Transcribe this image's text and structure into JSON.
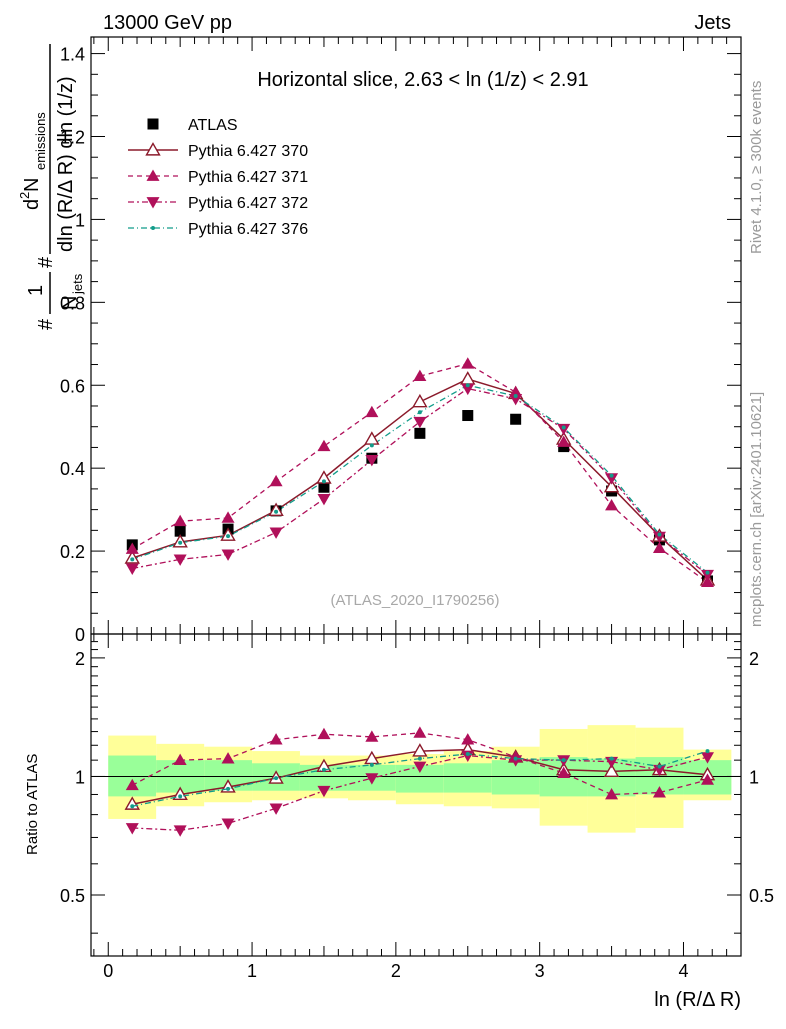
{
  "header": {
    "left": "13000 GeV pp",
    "right": "Jets"
  },
  "side": {
    "rivet": "Rivet 4.1.0, ≥ 300k events",
    "mcplots": "mcplots.cern.ch [arXiv:2401.10621]"
  },
  "colors": {
    "data": "#000000",
    "p370": "#8b1a2b",
    "p371": "#b0105a",
    "p372": "#b0105a",
    "p376": "#129c8a",
    "band_inner": "#99ff99",
    "band_outer": "#ffff99"
  },
  "chart_data": {
    "type": "scatter",
    "title": "Horizontal slice, 2.63 < ln (1/z) < 2.91",
    "watermark": "(ATLAS_2020_I1790256)",
    "xlabel": "ln (R/Δ R)",
    "ylabel_main": "1/N_jets d²N_emissions / dln(R/ΔR) dln(1/z)",
    "ylabel_parts": {
      "frac1_num": "1",
      "frac1_den": "N",
      "frac1_den_sub": "jets",
      "frac2_num": "d",
      "frac2_num_sup": "2",
      "frac2_num_tail": " N",
      "frac2_num_sub": "emissions",
      "frac2_den": "dln (R/Δ R) dln (1/z)",
      "hash": "#"
    },
    "ylabel_ratio": "Ratio to ATLAS",
    "xlim": [
      -0.12,
      4.4
    ],
    "ylim_main": [
      0,
      1.44
    ],
    "ylim_ratio": [
      0.35,
      2.3
    ],
    "x_ticks": [
      0,
      1,
      2,
      3,
      4
    ],
    "x_tick_labels": [
      "0",
      "1",
      "2",
      "3",
      "4"
    ],
    "y_ticks_main": [
      0,
      0.2,
      0.4,
      0.6,
      0.8,
      1.0,
      1.2,
      1.4
    ],
    "y_tick_labels_main": [
      "0",
      "0.2",
      "0.4",
      "0.6",
      "0.8",
      "1",
      "1.2",
      "1.4"
    ],
    "y_ticks_ratio": [
      0.5,
      1,
      2
    ],
    "y_tick_labels_ratio": [
      "0.5",
      "1",
      "2"
    ],
    "x": [
      0.167,
      0.5,
      0.833,
      1.167,
      1.5,
      1.833,
      2.167,
      2.5,
      2.833,
      3.167,
      3.5,
      3.833,
      4.167
    ],
    "x_edges": [
      0.0,
      0.333,
      0.667,
      1.0,
      1.333,
      1.667,
      2.0,
      2.333,
      2.667,
      3.0,
      3.333,
      3.667,
      4.0,
      4.333
    ],
    "series": [
      {
        "name": "ATLAS",
        "key": "atlas",
        "values": [
          0.215,
          0.248,
          0.253,
          0.297,
          0.354,
          0.424,
          0.484,
          0.527,
          0.518,
          0.452,
          0.345,
          0.227,
          0.128
        ],
        "errors": [
          0.012,
          0.01,
          0.01,
          0.008,
          0.008,
          0.008,
          0.01,
          0.012,
          0.012,
          0.01,
          0.008,
          0.006,
          0.004
        ]
      },
      {
        "name": "Pythia 6.427 370",
        "key": "p370",
        "values": [
          0.183,
          0.222,
          0.238,
          0.298,
          0.376,
          0.47,
          0.56,
          0.615,
          0.58,
          0.47,
          0.355,
          0.236,
          0.13
        ]
      },
      {
        "name": "Pythia 6.427 371",
        "key": "p371",
        "values": [
          0.205,
          0.272,
          0.28,
          0.368,
          0.453,
          0.535,
          0.622,
          0.652,
          0.583,
          0.463,
          0.31,
          0.207,
          0.125
        ]
      },
      {
        "name": "Pythia 6.427 372",
        "key": "p372",
        "values": [
          0.158,
          0.18,
          0.192,
          0.245,
          0.326,
          0.42,
          0.512,
          0.592,
          0.567,
          0.495,
          0.376,
          0.235,
          0.143
        ]
      },
      {
        "name": "Pythia 6.427 376",
        "key": "p376",
        "values": [
          0.18,
          0.22,
          0.236,
          0.295,
          0.368,
          0.455,
          0.535,
          0.6,
          0.574,
          0.498,
          0.382,
          0.24,
          0.148
        ]
      }
    ],
    "ratios": {
      "p370": [
        0.85,
        0.9,
        0.94,
        0.99,
        1.06,
        1.11,
        1.16,
        1.17,
        1.12,
        1.04,
        1.03,
        1.04,
        1.01
      ],
      "p371": [
        0.95,
        1.1,
        1.11,
        1.24,
        1.28,
        1.26,
        1.29,
        1.24,
        1.12,
        1.02,
        0.9,
        0.91,
        0.98
      ],
      "p372": [
        0.74,
        0.73,
        0.76,
        0.83,
        0.92,
        0.99,
        1.06,
        1.13,
        1.1,
        1.1,
        1.09,
        1.04,
        1.12
      ],
      "p376": [
        0.84,
        0.89,
        0.93,
        0.99,
        1.04,
        1.07,
        1.11,
        1.14,
        1.11,
        1.1,
        1.11,
        1.06,
        1.16
      ]
    },
    "band_inner": [
      [
        0.89,
        1.13
      ],
      [
        0.91,
        1.1
      ],
      [
        0.92,
        1.1
      ],
      [
        0.92,
        1.08
      ],
      [
        0.92,
        1.07
      ],
      [
        0.92,
        1.07
      ],
      [
        0.91,
        1.07
      ],
      [
        0.91,
        1.08
      ],
      [
        0.9,
        1.1
      ],
      [
        0.89,
        1.12
      ],
      [
        0.89,
        1.11
      ],
      [
        0.9,
        1.12
      ],
      [
        0.9,
        1.1
      ]
    ],
    "band_outer": [
      [
        0.78,
        1.27
      ],
      [
        0.84,
        1.21
      ],
      [
        0.86,
        1.19
      ],
      [
        0.87,
        1.16
      ],
      [
        0.88,
        1.13
      ],
      [
        0.87,
        1.13
      ],
      [
        0.85,
        1.14
      ],
      [
        0.84,
        1.16
      ],
      [
        0.83,
        1.19
      ],
      [
        0.75,
        1.32
      ],
      [
        0.72,
        1.35
      ],
      [
        0.74,
        1.33
      ],
      [
        0.87,
        1.17
      ]
    ]
  }
}
